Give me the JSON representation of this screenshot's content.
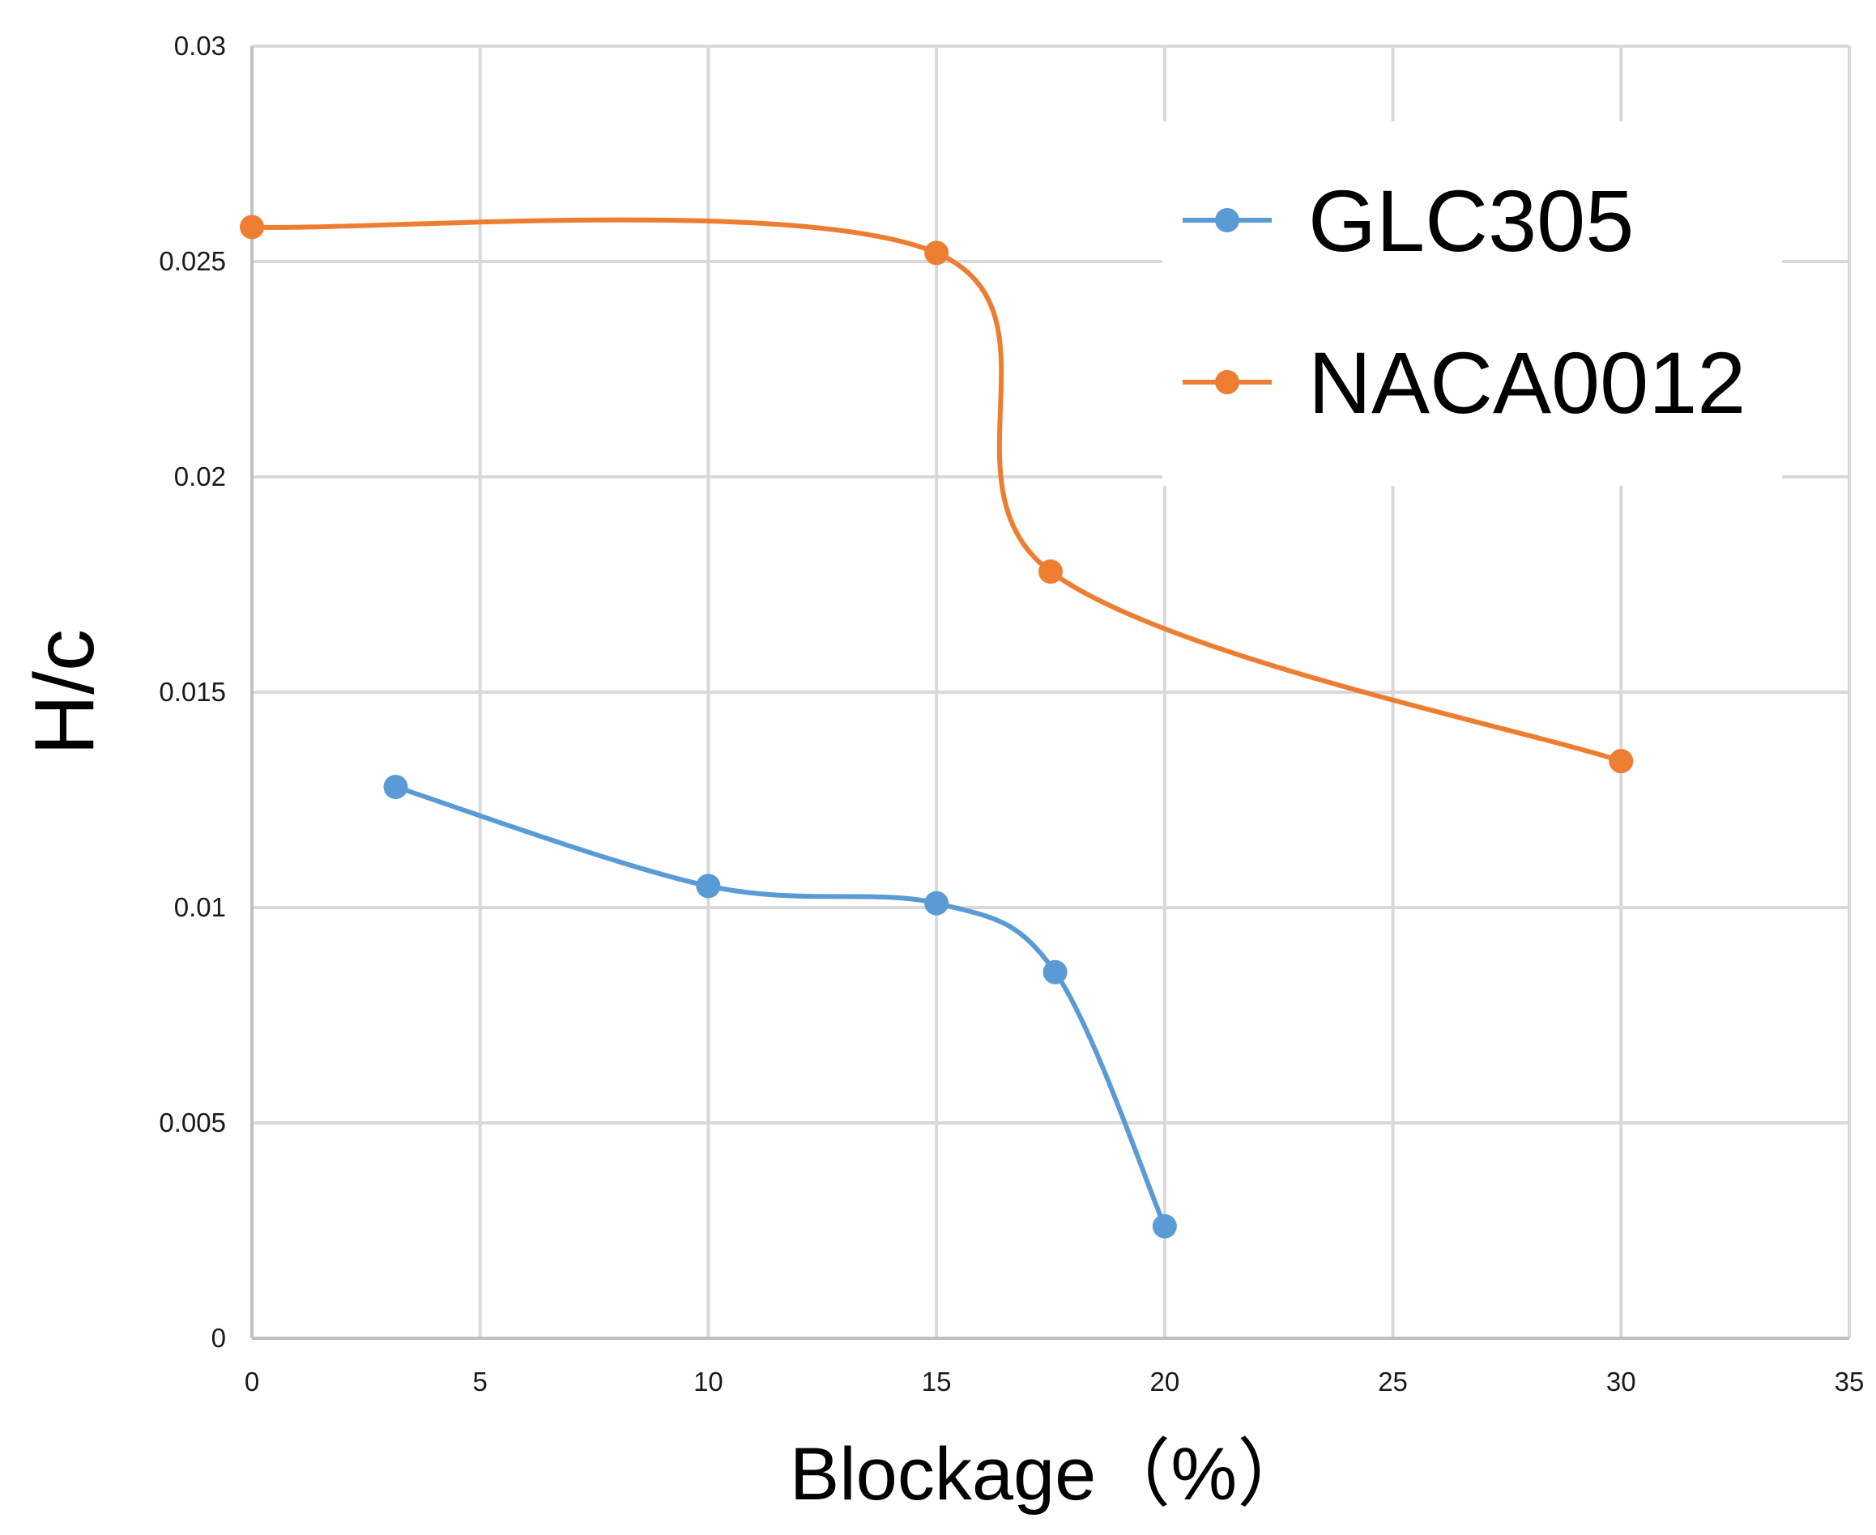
{
  "chart_data": {
    "type": "line",
    "title": "",
    "xlabel": "Blockage（%）",
    "ylabel": "H/c",
    "xlim": [
      0,
      35
    ],
    "ylim": [
      0,
      0.03
    ],
    "xticks": [
      0,
      5,
      10,
      15,
      20,
      25,
      30,
      35
    ],
    "xtick_labels": [
      "0",
      "5",
      "10",
      "15",
      "20",
      "25",
      "30",
      "35"
    ],
    "yticks": [
      0,
      0.005,
      0.01,
      0.015,
      0.02,
      0.025,
      0.03
    ],
    "ytick_labels": [
      "0",
      "0.005",
      "0.01",
      "0.015",
      "0.02",
      "0.025",
      "0.03"
    ],
    "grid": true,
    "smooth": true,
    "legend_position": "top-right",
    "series": [
      {
        "name": "GLC305",
        "color": "#5b9bd5",
        "x": [
          3.15,
          10,
          15,
          17.6,
          20
        ],
        "y": [
          0.0128,
          0.0105,
          0.0101,
          0.0085,
          0.0026
        ]
      },
      {
        "name": "NACA0012",
        "color": "#ed7d31",
        "x": [
          0,
          15,
          17.5,
          30
        ],
        "y": [
          0.0258,
          0.0252,
          0.0178,
          0.0134
        ]
      }
    ]
  }
}
